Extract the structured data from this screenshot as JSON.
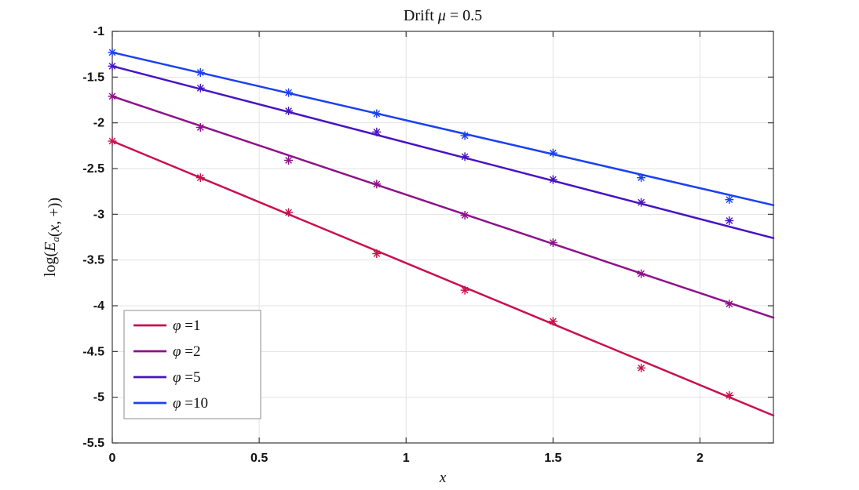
{
  "chart_data": {
    "type": "line",
    "title": "Drift μ = 0.5",
    "title_parts": [
      {
        "text": "Drift ",
        "style": "normal"
      },
      {
        "text": "μ",
        "style": "italic"
      },
      {
        "text": " = 0.5",
        "style": "normal"
      }
    ],
    "xlabel": "x",
    "ylabel": "log(E_a(x,+))",
    "ylabel_parts": [
      {
        "text": "log(",
        "style": "normal"
      },
      {
        "text": "E",
        "style": "italic"
      },
      {
        "text": "a",
        "style": "subscript"
      },
      {
        "text": "(",
        "style": "normal"
      },
      {
        "text": "x",
        "style": "italic"
      },
      {
        "text": ", +))",
        "style": "normal"
      }
    ],
    "xlim": [
      0,
      2.25
    ],
    "ylim": [
      -5.5,
      -1
    ],
    "grid": true,
    "grid_color": "#e3e3e3",
    "axis_color": "#3b3b3b",
    "text_color": "#111111",
    "legend_position": "southwest",
    "legend_border_color": "#8c8c8c",
    "x": [
      0,
      0.3,
      0.6,
      0.9,
      1.2,
      1.5,
      1.8,
      2.1
    ],
    "xticks": [
      {
        "v": 0,
        "label": "0"
      },
      {
        "v": 0.5,
        "label": "0.5"
      },
      {
        "v": 1,
        "label": "1"
      },
      {
        "v": 1.5,
        "label": "1.5"
      },
      {
        "v": 2,
        "label": "2"
      }
    ],
    "yticks": [
      {
        "v": -1,
        "label": "-1"
      },
      {
        "v": -1.5,
        "label": "-1.5"
      },
      {
        "v": -2,
        "label": "-2"
      },
      {
        "v": -2.5,
        "label": "-2.5"
      },
      {
        "v": -3,
        "label": "-3"
      },
      {
        "v": -3.5,
        "label": "-3.5"
      },
      {
        "v": -4,
        "label": "-4"
      },
      {
        "v": -4.5,
        "label": "-4.5"
      },
      {
        "v": -5,
        "label": "-5"
      },
      {
        "v": -5.5,
        "label": "-5.5"
      }
    ],
    "series": [
      {
        "id": "phi-1",
        "label": "φ =1",
        "label_symbol": "φ",
        "label_rest": " =1",
        "color": "#c9104c",
        "points": [
          -2.2,
          -2.6,
          -2.98,
          -3.43,
          -3.83,
          -4.17,
          -4.68,
          -4.98
        ],
        "fit": {
          "x": [
            0,
            2.25
          ],
          "y": [
            -2.2,
            -5.2
          ]
        }
      },
      {
        "id": "phi-2",
        "label": "φ =2",
        "label_symbol": "φ",
        "label_rest": " =2",
        "color": "#8e1189",
        "points": [
          -1.71,
          -2.05,
          -2.41,
          -2.67,
          -3.01,
          -3.31,
          -3.65,
          -3.98
        ],
        "fit": {
          "x": [
            0,
            2.25
          ],
          "y": [
            -1.71,
            -4.13
          ]
        }
      },
      {
        "id": "phi-5",
        "label": "φ =5",
        "label_symbol": "φ",
        "label_rest": " =5",
        "color": "#4713c4",
        "points": [
          -1.38,
          -1.62,
          -1.87,
          -2.1,
          -2.37,
          -2.62,
          -2.87,
          -3.07
        ],
        "fit": {
          "x": [
            0,
            2.25
          ],
          "y": [
            -1.38,
            -3.26
          ]
        }
      },
      {
        "id": "phi-10",
        "label": "φ =10",
        "label_symbol": "φ",
        "label_rest": " =10",
        "color": "#1b40f2",
        "points": [
          -1.23,
          -1.45,
          -1.67,
          -1.9,
          -2.14,
          -2.33,
          -2.6,
          -2.84
        ],
        "fit": {
          "x": [
            0,
            2.25
          ],
          "y": [
            -1.23,
            -2.9
          ]
        }
      }
    ]
  }
}
